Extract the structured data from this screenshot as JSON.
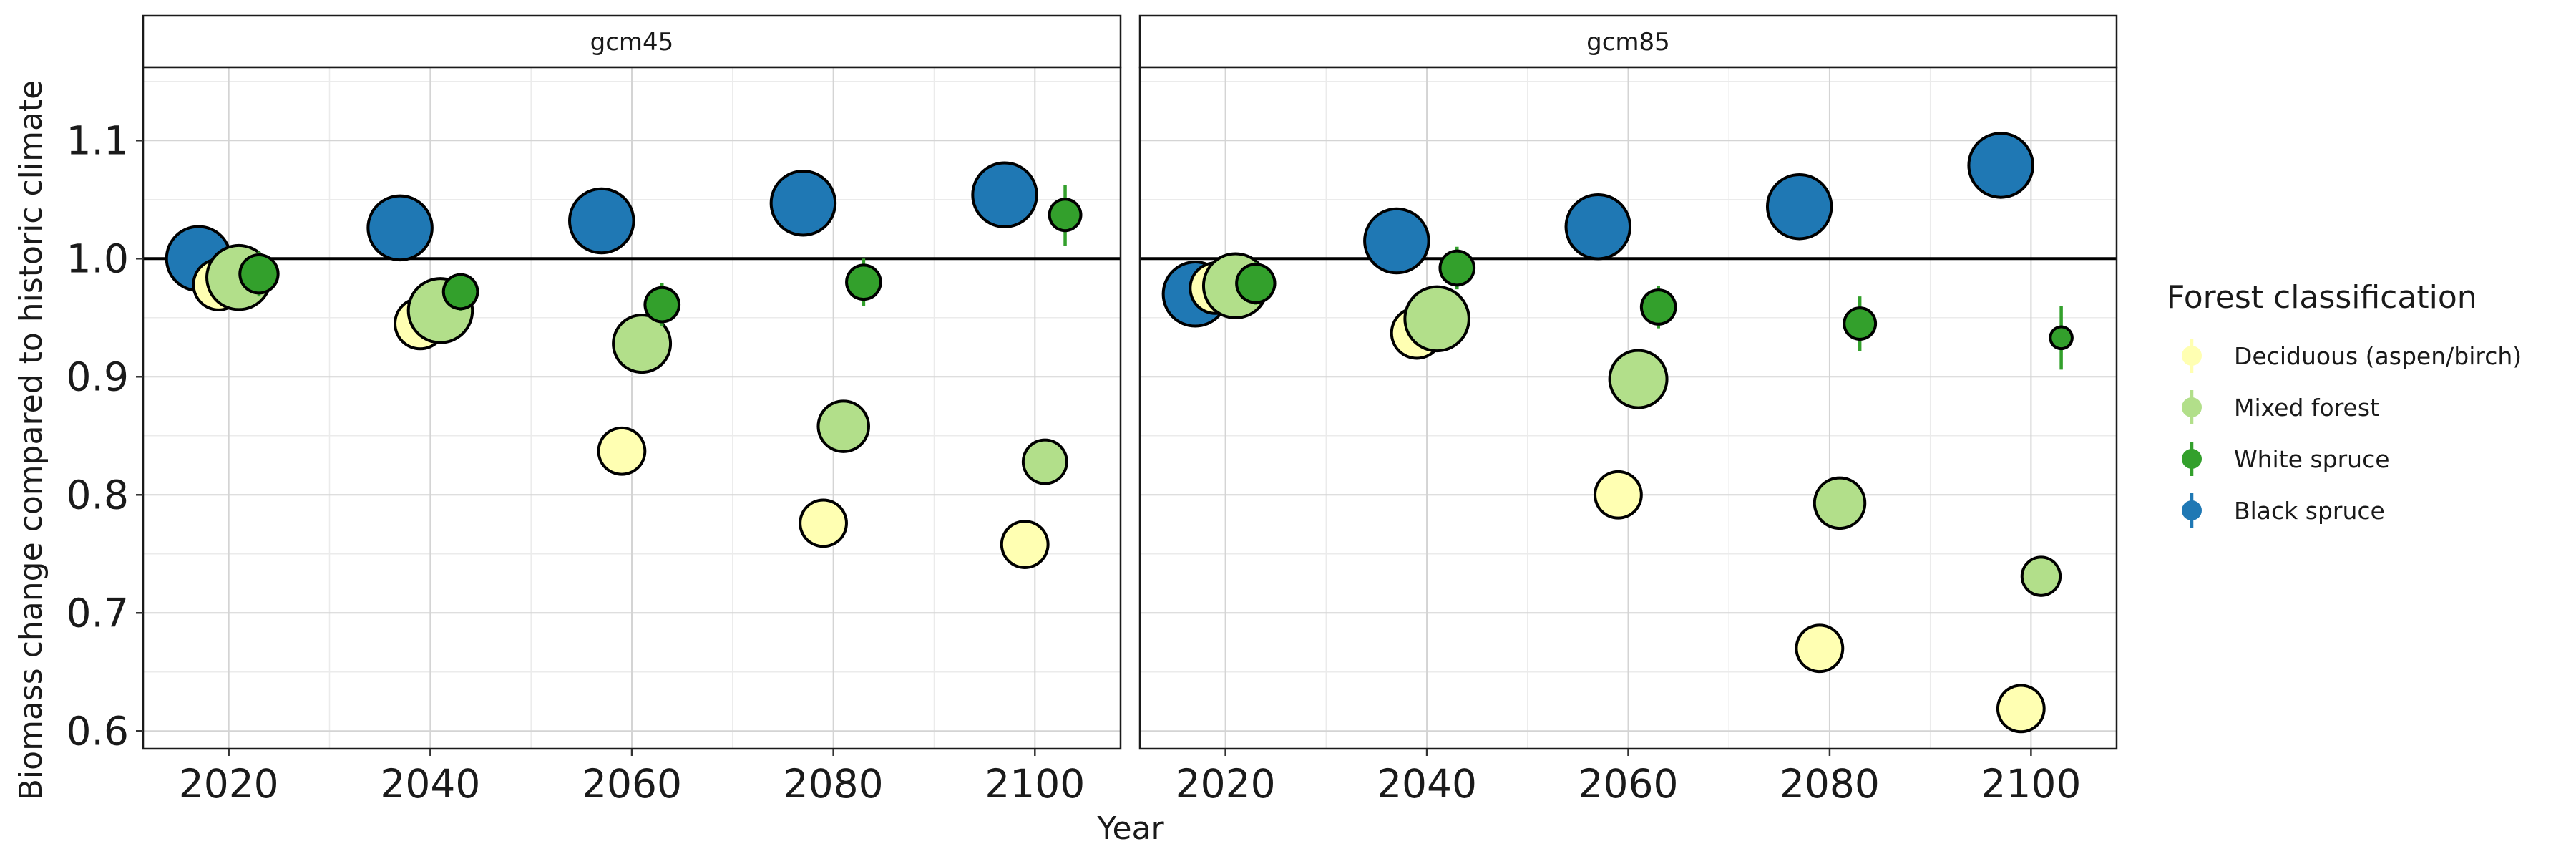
{
  "chart_data": {
    "type": "scatter",
    "xlabel": "Year",
    "ylabel": "Biomass change compared to historic climate",
    "xlim": [
      2011.5,
      2108.5
    ],
    "ylim": [
      0.585,
      1.162
    ],
    "x_ticks": [
      2020,
      2040,
      2060,
      2080,
      2100
    ],
    "y_ticks": [
      0.6,
      0.7,
      0.8,
      0.9,
      1.0,
      1.1
    ],
    "y_tick_labels": [
      "0.6",
      "0.7",
      "0.8",
      "0.9",
      "1.0",
      "1.1"
    ],
    "reference_line": 1.0,
    "grid": true,
    "legend": {
      "title": "Forest classification",
      "placement": "right",
      "entries": [
        {
          "name": "Deciduous (aspen/birch)",
          "color": "#ffffb2"
        },
        {
          "name": "Mixed forest",
          "color": "#b2df8a"
        },
        {
          "name": "White spruce",
          "color": "#33a02c"
        },
        {
          "name": "Black spruce",
          "color": "#1f78b4"
        }
      ]
    },
    "panels": [
      {
        "title": "gcm45",
        "series": [
          {
            "name": "Black spruce",
            "x": [
              2017,
              2037,
              2057,
              2077,
              2097
            ],
            "y": [
              1.0,
              1.026,
              1.032,
              1.047,
              1.054
            ],
            "ymin": [
              0.975,
              1.0,
              1.008,
              1.026,
              1.036
            ],
            "ymax": [
              1.026,
              1.052,
              1.056,
              1.068,
              1.072
            ],
            "size": [
              4.5,
              4.5,
              4.5,
              4.5,
              4.5
            ]
          },
          {
            "name": "Deciduous (aspen/birch)",
            "x": [
              2019,
              2039,
              2059,
              2079,
              2099
            ],
            "y": [
              0.978,
              0.945,
              0.837,
              0.776,
              0.758
            ],
            "ymin": [
              0.972,
              0.94,
              0.833,
              0.773,
              0.755
            ],
            "ymax": [
              0.984,
              0.95,
              0.841,
              0.779,
              0.761
            ],
            "size": [
              3.5,
              3.5,
              3.2,
              3.2,
              3.2
            ]
          },
          {
            "name": "Mixed forest",
            "x": [
              2021,
              2041,
              2061,
              2081,
              2101
            ],
            "y": [
              0.984,
              0.956,
              0.928,
              0.858,
              0.828
            ],
            "ymin": [
              0.975,
              0.948,
              0.921,
              0.852,
              0.822
            ],
            "ymax": [
              0.993,
              0.964,
              0.935,
              0.864,
              0.834
            ],
            "size": [
              4.5,
              4.5,
              4.0,
              3.5,
              3.0
            ]
          },
          {
            "name": "White spruce",
            "x": [
              2023,
              2043,
              2063,
              2083,
              2103
            ],
            "y": [
              0.987,
              0.972,
              0.961,
              0.98,
              1.037
            ],
            "ymin": [
              0.968,
              0.956,
              0.943,
              0.96,
              1.011
            ],
            "ymax": [
              1.006,
              0.988,
              0.979,
              1.0,
              1.062
            ],
            "size": [
              2.6,
              2.3,
              2.3,
              2.3,
              2.1
            ]
          }
        ]
      },
      {
        "title": "gcm85",
        "series": [
          {
            "name": "Black spruce",
            "x": [
              2017,
              2037,
              2057,
              2077,
              2097
            ],
            "y": [
              0.97,
              1.015,
              1.027,
              1.044,
              1.079
            ],
            "ymin": [
              0.944,
              0.99,
              1.004,
              1.024,
              1.06
            ],
            "ymax": [
              0.996,
              1.04,
              1.05,
              1.064,
              1.098
            ],
            "size": [
              4.5,
              4.5,
              4.5,
              4.5,
              4.5
            ]
          },
          {
            "name": "Deciduous (aspen/birch)",
            "x": [
              2019,
              2039,
              2059,
              2079,
              2099
            ],
            "y": [
              0.975,
              0.937,
              0.8,
              0.67,
              0.619
            ],
            "ymin": [
              0.969,
              0.931,
              0.796,
              0.667,
              0.616
            ],
            "ymax": [
              0.981,
              0.943,
              0.804,
              0.673,
              0.622
            ],
            "size": [
              3.5,
              3.5,
              3.2,
              3.2,
              3.2
            ]
          },
          {
            "name": "Mixed forest",
            "x": [
              2021,
              2041,
              2061,
              2081,
              2101
            ],
            "y": [
              0.977,
              0.949,
              0.898,
              0.793,
              0.731
            ],
            "ymin": [
              0.97,
              0.942,
              0.891,
              0.787,
              0.716
            ],
            "ymax": [
              0.984,
              0.956,
              0.905,
              0.799,
              0.746
            ],
            "size": [
              4.5,
              4.5,
              4.0,
              3.5,
              2.6
            ]
          },
          {
            "name": "White spruce",
            "x": [
              2023,
              2043,
              2063,
              2083,
              2103
            ],
            "y": [
              0.979,
              0.992,
              0.959,
              0.945,
              0.933
            ],
            "ymin": [
              0.961,
              0.974,
              0.941,
              0.922,
              0.906
            ],
            "ymax": [
              0.997,
              1.01,
              0.977,
              0.968,
              0.96
            ],
            "size": [
              2.6,
              2.3,
              2.3,
              2.1,
              1.4
            ]
          }
        ]
      }
    ]
  }
}
